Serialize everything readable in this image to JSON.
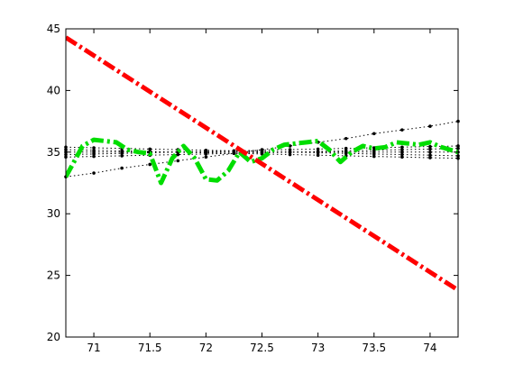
{
  "chart_data": {
    "type": "line",
    "title": "",
    "xlabel": "",
    "ylabel": "",
    "xlim": [
      70.75,
      74.25
    ],
    "ylim": [
      20,
      45
    ],
    "grid": false,
    "legend": "none",
    "xticks": [
      {
        "value": 71,
        "label": "71"
      },
      {
        "value": 71.5,
        "label": "71.5"
      },
      {
        "value": 72,
        "label": "72"
      },
      {
        "value": 72.5,
        "label": "72.5"
      },
      {
        "value": 73,
        "label": "73"
      },
      {
        "value": 73.5,
        "label": "73.5"
      },
      {
        "value": 74,
        "label": "74"
      }
    ],
    "yticks": [
      {
        "value": 20,
        "label": "20"
      },
      {
        "value": 25,
        "label": "25"
      },
      {
        "value": 30,
        "label": "30"
      },
      {
        "value": 35,
        "label": "35"
      },
      {
        "value": 40,
        "label": "40"
      },
      {
        "value": 45,
        "label": "45"
      }
    ],
    "series": [
      {
        "color": "#ff0000",
        "style": "dashdot",
        "marker": "none",
        "x": [
          70.75,
          74.25
        ],
        "y": [
          44.3,
          23.8
        ]
      },
      {
        "color": "#00dd00",
        "style": "dashdot",
        "marker": "none",
        "x": [
          70.75,
          70.9,
          71.0,
          71.1,
          71.2,
          71.3,
          71.4,
          71.5,
          71.6,
          71.7,
          71.8,
          71.9,
          72.0,
          72.1,
          72.2,
          72.3,
          72.4,
          72.5,
          72.6,
          72.7,
          72.8,
          72.9,
          73.0,
          73.1,
          73.2,
          73.3,
          73.4,
          73.5,
          73.6,
          73.7,
          73.8,
          73.9,
          74.0,
          74.1,
          74.25
        ],
        "y": [
          33.0,
          35.5,
          36.0,
          35.9,
          35.8,
          35.2,
          35.0,
          34.9,
          32.5,
          34.5,
          35.5,
          34.5,
          32.8,
          32.7,
          33.5,
          35.0,
          34.2,
          34.5,
          35.2,
          35.6,
          35.7,
          35.8,
          35.9,
          35.2,
          34.2,
          35.0,
          35.5,
          35.3,
          35.4,
          35.8,
          35.7,
          35.6,
          35.8,
          35.4,
          35.0
        ]
      },
      {
        "color": "#000000",
        "style": "dotted",
        "marker": "dot",
        "x": [
          70.75,
          71.0,
          71.25,
          71.5,
          71.75,
          72.0,
          72.25,
          72.5,
          72.75,
          73.0,
          73.25,
          73.5,
          73.75,
          74.0,
          74.25
        ],
        "y": [
          33.0,
          33.3,
          33.7,
          34.0,
          34.3,
          34.6,
          34.9,
          35.2,
          35.5,
          35.8,
          36.1,
          36.5,
          36.8,
          37.1,
          37.5
        ]
      },
      {
        "color": "#000000",
        "style": "dotted",
        "marker": "dot",
        "x": [
          70.75,
          71.0,
          71.25,
          71.5,
          71.75,
          72.0,
          72.25,
          72.5,
          72.75,
          73.0,
          73.25,
          73.5,
          73.75,
          74.0,
          74.25
        ],
        "y": [
          34.8,
          34.85,
          34.9,
          34.95,
          35.0,
          35.05,
          35.1,
          35.15,
          35.2,
          35.25,
          35.3,
          35.35,
          35.4,
          35.45,
          35.5
        ]
      },
      {
        "color": "#000000",
        "style": "dotted",
        "marker": "dot",
        "x": [
          70.75,
          71.0,
          71.25,
          71.5,
          71.75,
          72.0,
          72.25,
          72.5,
          72.75,
          73.0,
          73.25,
          73.5,
          73.75,
          74.0,
          74.25
        ],
        "y": [
          35.0,
          35.0,
          35.0,
          35.0,
          35.0,
          35.0,
          35.0,
          35.0,
          35.0,
          35.0,
          35.0,
          35.0,
          35.0,
          35.0,
          35.0
        ]
      },
      {
        "color": "#000000",
        "style": "dotted",
        "marker": "dot",
        "x": [
          70.75,
          71.0,
          71.25,
          71.5,
          71.75,
          72.0,
          72.25,
          72.5,
          72.75,
          73.0,
          73.25,
          73.5,
          73.75,
          74.0,
          74.25
        ],
        "y": [
          35.2,
          35.15,
          35.1,
          35.05,
          35.0,
          34.95,
          34.9,
          34.85,
          34.8,
          34.75,
          34.7,
          34.65,
          34.6,
          34.55,
          34.5
        ]
      },
      {
        "color": "#000000",
        "style": "dotted",
        "marker": "dot",
        "x": [
          70.75,
          71.0,
          71.25,
          71.5,
          71.75,
          72.0,
          72.25,
          72.5,
          72.75,
          73.0,
          73.25,
          73.5,
          73.75,
          74.0,
          74.25
        ],
        "y": [
          34.6,
          34.65,
          34.7,
          34.75,
          34.8,
          34.85,
          34.9,
          34.95,
          35.0,
          35.05,
          35.1,
          35.15,
          35.2,
          35.25,
          35.3
        ]
      },
      {
        "color": "#000000",
        "style": "dotted",
        "marker": "dot",
        "x": [
          70.75,
          71.0,
          71.25,
          71.5,
          71.75,
          72.0,
          72.25,
          72.5,
          72.75,
          73.0,
          73.25,
          73.5,
          73.75,
          74.0,
          74.25
        ],
        "y": [
          35.4,
          35.35,
          35.3,
          35.25,
          35.2,
          35.15,
          35.1,
          35.05,
          35.0,
          34.95,
          34.9,
          34.85,
          34.8,
          34.75,
          34.7
        ]
      }
    ]
  }
}
